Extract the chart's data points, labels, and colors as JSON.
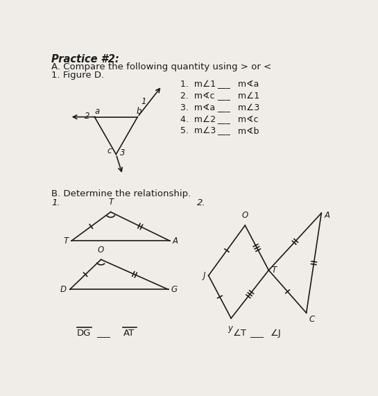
{
  "title": "Practice #2:",
  "bg_color": "#f0ede8",
  "text_color": "#1a1a1a",
  "section_A_title": "A. Compare the following quantity using > or <",
  "section_A_sub": "1. Figure D.",
  "comp_lines": [
    [
      "1.  m",
      "1",
      " ___  m",
      "a"
    ],
    [
      "2.  m",
      "c",
      " ___  m",
      "1"
    ],
    [
      "3.  m",
      "a",
      " ___  m",
      "3"
    ],
    [
      "4.  m",
      "2",
      " ___  m",
      "c"
    ],
    [
      "5.  m",
      "3",
      " ___  m",
      "b"
    ]
  ],
  "section_B_title": "B. Determine the relationship.",
  "b1_label": "1.",
  "b2_label": "2.",
  "fig_bg": "#f0ede8"
}
